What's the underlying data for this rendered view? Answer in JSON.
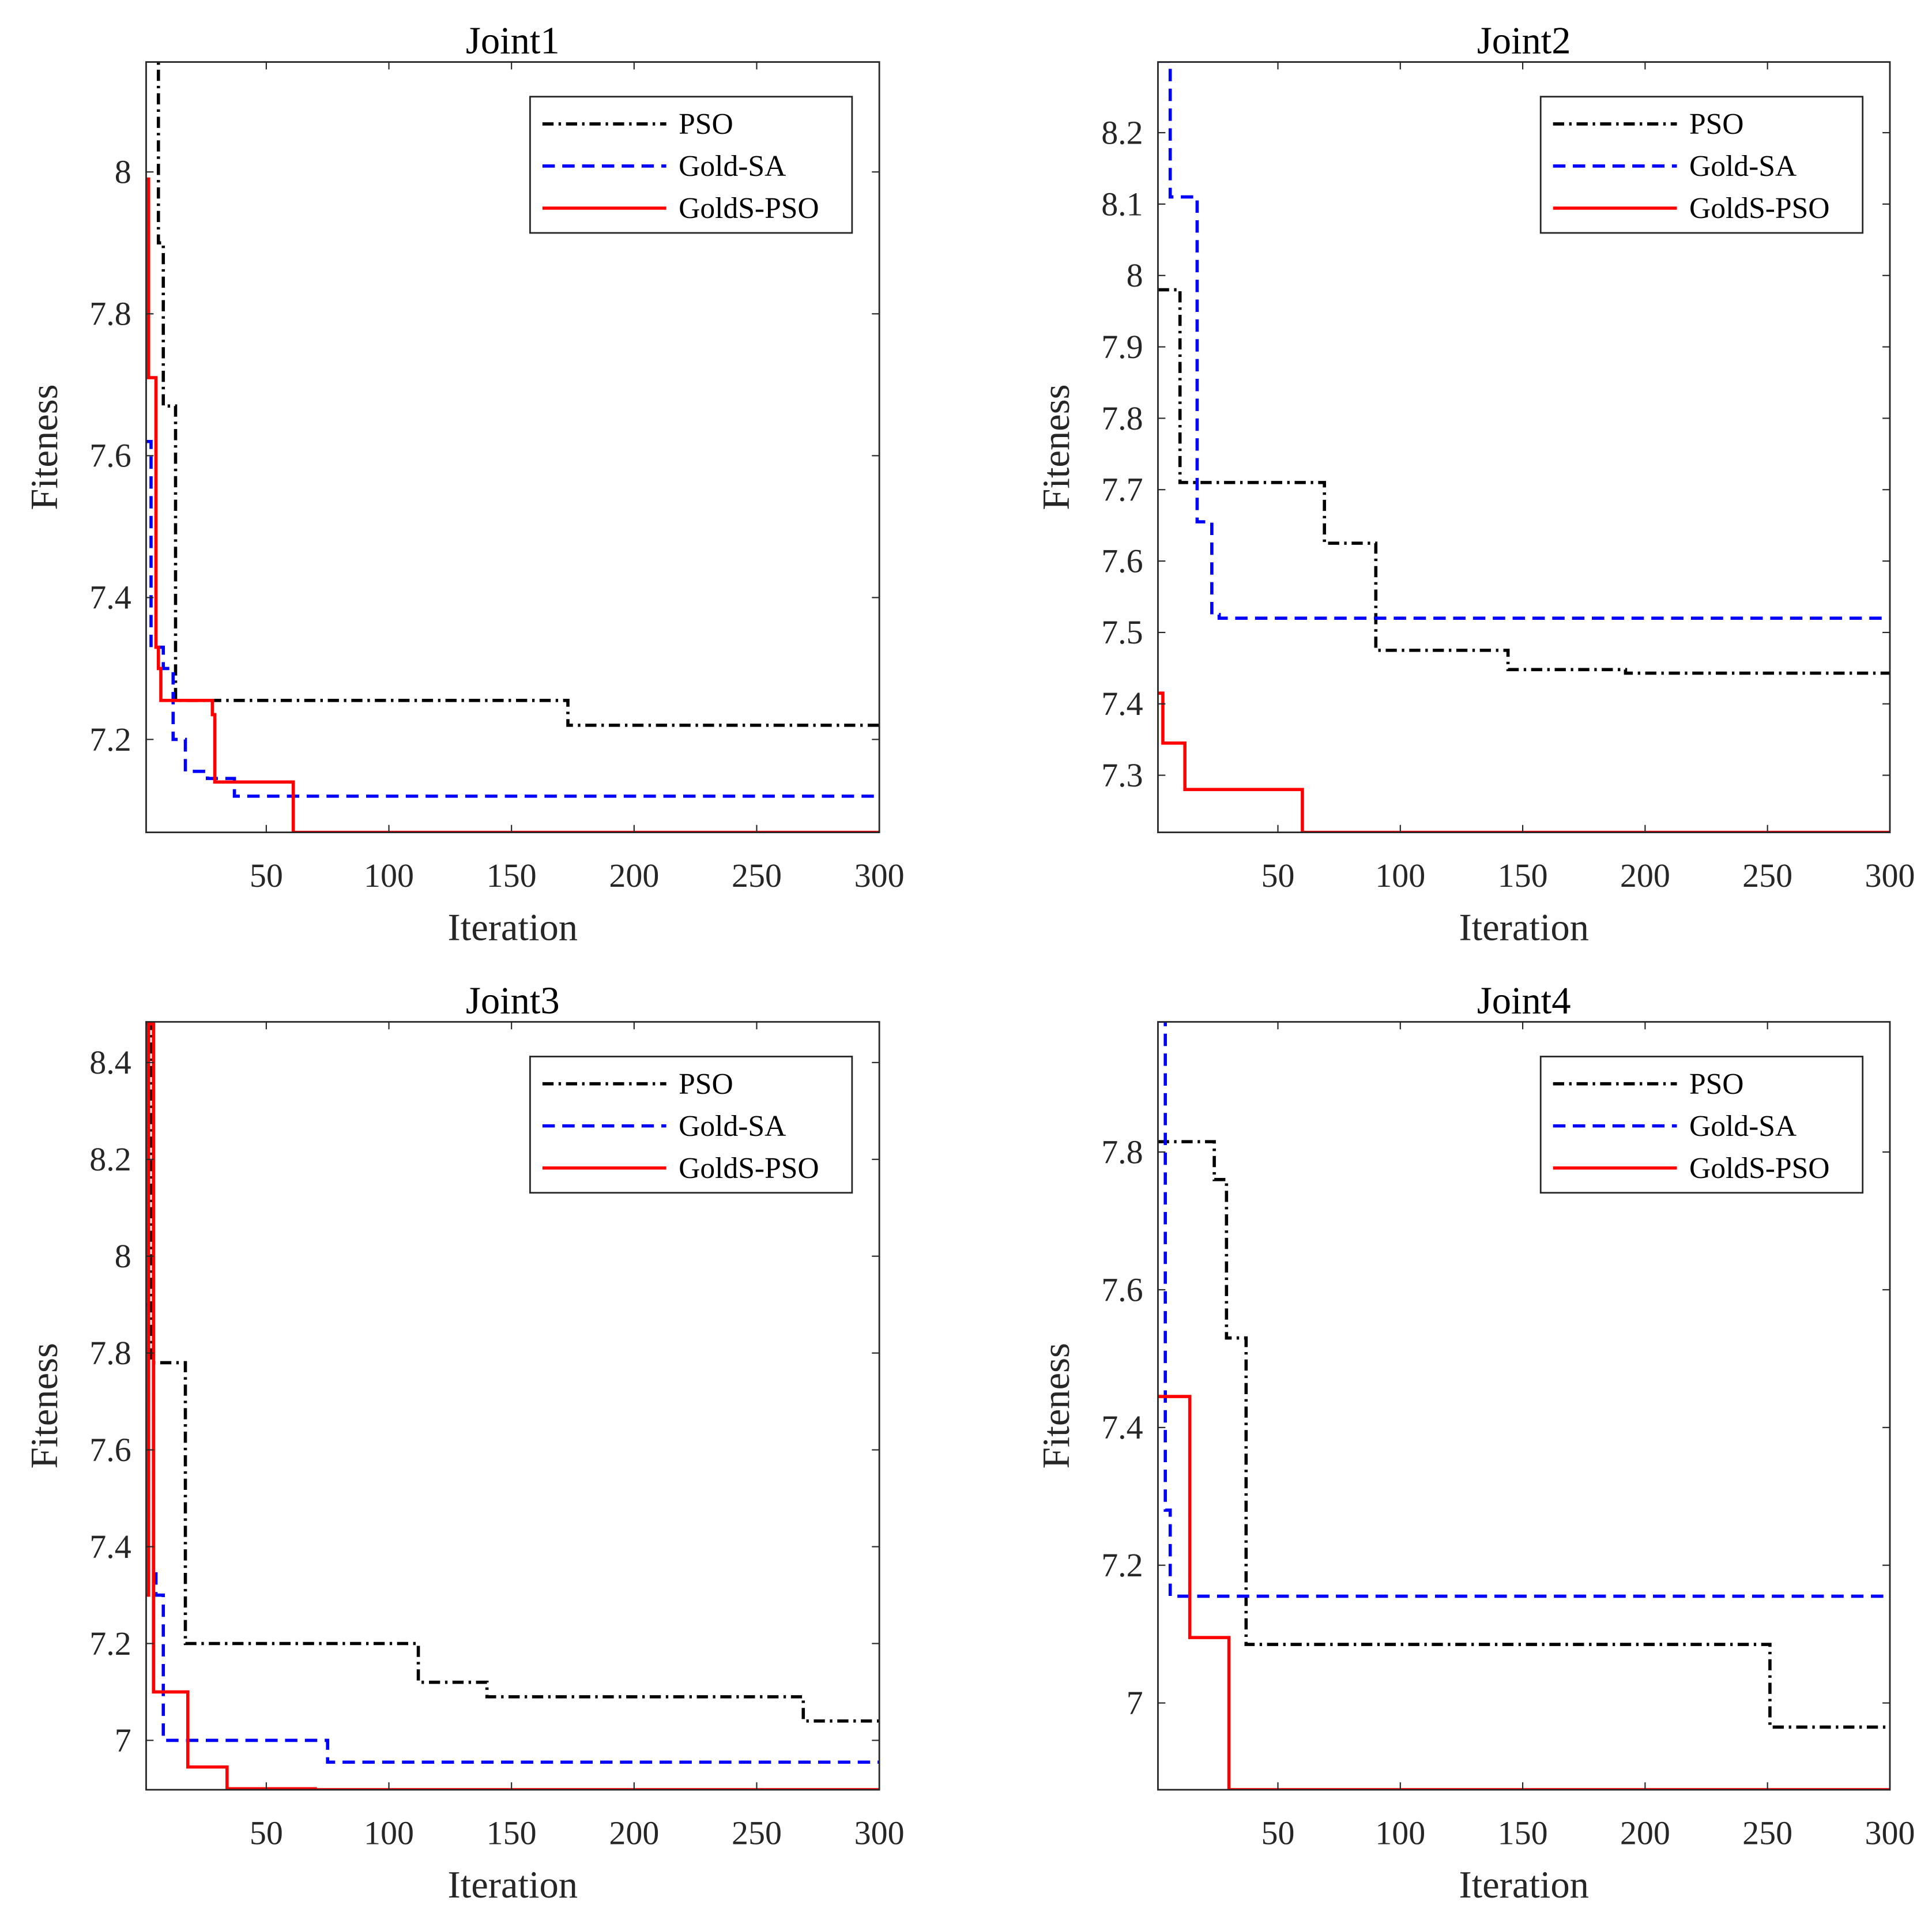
{
  "colors": {
    "PSO": "#000000",
    "Gold-SA": "#0000ff",
    "GoldS-PSO": "#ff0000"
  },
  "chart_data": [
    {
      "type": "line",
      "title": "Joint1",
      "xlabel": "Iteration",
      "ylabel": "Fiteness",
      "xlim": [
        1,
        300
      ],
      "ylim": [
        7.069,
        8.155
      ],
      "xticks": [
        50,
        100,
        150,
        200,
        250,
        300
      ],
      "yticks": [
        7.2,
        7.4,
        7.6,
        7.8,
        8
      ],
      "ytick_labels": [
        "7.2",
        "7.4",
        "7.6",
        "7.8",
        "8"
      ],
      "legend": "top-right",
      "series": [
        {
          "name": "PSO",
          "style": "dashdot",
          "x": [
            1,
            6,
            8,
            12,
            13,
            173,
            300
          ],
          "y": [
            8.16,
            7.9,
            7.67,
            7.67,
            7.255,
            7.22,
            7.22
          ]
        },
        {
          "name": "Gold-SA",
          "style": "dashed",
          "x": [
            1,
            3,
            8,
            12,
            17,
            26,
            37,
            300
          ],
          "y": [
            7.62,
            7.33,
            7.3,
            7.2,
            7.155,
            7.145,
            7.12,
            7.12
          ]
        },
        {
          "name": "GoldS-PSO",
          "style": "solid",
          "x": [
            1,
            2,
            5,
            6,
            7,
            28,
            29,
            61,
            300
          ],
          "y": [
            7.99,
            7.71,
            7.33,
            7.3,
            7.255,
            7.235,
            7.14,
            7.069,
            7.069
          ]
        }
      ]
    },
    {
      "type": "line",
      "title": "Joint2",
      "xlabel": "Iteration",
      "ylabel": "Fiteness",
      "xlim": [
        1,
        300
      ],
      "ylim": [
        7.22,
        8.299
      ],
      "xticks": [
        50,
        100,
        150,
        200,
        250,
        300
      ],
      "yticks": [
        7.3,
        7.4,
        7.5,
        7.6,
        7.7,
        7.8,
        7.9,
        8,
        8.1,
        8.2
      ],
      "ytick_labels": [
        "7.3",
        "7.4",
        "7.5",
        "7.6",
        "7.7",
        "7.8",
        "7.9",
        "8",
        "8.1",
        "8.2"
      ],
      "legend": "top-right",
      "series": [
        {
          "name": "PSO",
          "style": "dashdot",
          "x": [
            1,
            10,
            69,
            90,
            144,
            192,
            300
          ],
          "y": [
            7.98,
            7.71,
            7.625,
            7.475,
            7.448,
            7.443,
            7.443
          ]
        },
        {
          "name": "Gold-SA",
          "style": "dashed",
          "x": [
            1,
            6,
            17,
            23,
            26,
            300
          ],
          "y": [
            8.3,
            8.11,
            7.655,
            7.525,
            7.52,
            7.52
          ]
        },
        {
          "name": "GoldS-PSO",
          "style": "solid",
          "x": [
            1,
            3,
            12,
            60,
            300
          ],
          "y": [
            7.415,
            7.345,
            7.28,
            7.22,
            7.22
          ]
        }
      ]
    },
    {
      "type": "line",
      "title": "Joint3",
      "xlabel": "Iteration",
      "ylabel": "Fiteness",
      "xlim": [
        1,
        300
      ],
      "ylim": [
        6.898,
        8.484
      ],
      "xticks": [
        50,
        100,
        150,
        200,
        250,
        300
      ],
      "yticks": [
        7,
        7.2,
        7.4,
        7.6,
        7.8,
        8,
        8.2,
        8.4
      ],
      "ytick_labels": [
        "7",
        "7.2",
        "7.4",
        "7.6",
        "7.8",
        "8",
        "8.2",
        "8.4"
      ],
      "legend": "top-right",
      "series": [
        {
          "name": "PSO",
          "style": "dashdot",
          "x": [
            1,
            3,
            17,
            112,
            140,
            269,
            300
          ],
          "y": [
            8.48,
            7.78,
            7.2,
            7.12,
            7.09,
            7.04,
            7.04
          ]
        },
        {
          "name": "Gold-SA",
          "style": "dashed",
          "x": [
            1,
            2,
            5,
            8,
            75,
            300
          ],
          "y": [
            7.9,
            7.35,
            7.3,
            7.0,
            6.955,
            6.955
          ]
        },
        {
          "name": "GoldS-PSO",
          "style": "solid",
          "x": [
            1,
            2,
            4,
            18,
            34,
            70,
            300
          ],
          "y": [
            7.3,
            8.48,
            7.1,
            6.945,
            6.9,
            6.898,
            6.898
          ]
        }
      ]
    },
    {
      "type": "line",
      "title": "Joint4",
      "xlabel": "Iteration",
      "ylabel": "Fiteness",
      "xlim": [
        1,
        300
      ],
      "ylim": [
        6.874,
        7.989
      ],
      "xticks": [
        50,
        100,
        150,
        200,
        250,
        300
      ],
      "yticks": [
        7,
        7.2,
        7.4,
        7.6,
        7.8
      ],
      "ytick_labels": [
        "7",
        "7.2",
        "7.4",
        "7.6",
        "7.8"
      ],
      "legend": "top-right",
      "series": [
        {
          "name": "PSO",
          "style": "dashdot",
          "x": [
            1,
            24,
            29,
            37,
            251,
            300
          ],
          "y": [
            7.815,
            7.76,
            7.53,
            7.085,
            6.965,
            6.965
          ]
        },
        {
          "name": "Gold-SA",
          "style": "dashed",
          "x": [
            1,
            4,
            6,
            300
          ],
          "y": [
            7.99,
            7.28,
            7.155,
            7.155
          ]
        },
        {
          "name": "GoldS-PSO",
          "style": "solid",
          "x": [
            1,
            14,
            30,
            300
          ],
          "y": [
            7.445,
            7.095,
            6.874,
            6.874
          ]
        }
      ]
    }
  ]
}
